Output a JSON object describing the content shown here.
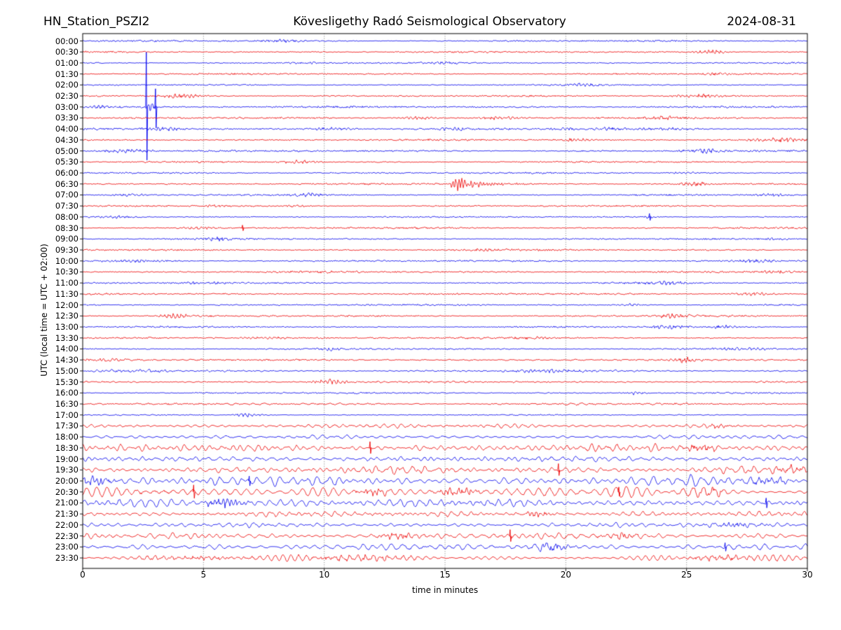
{
  "header": {
    "station": "HN_Station_PSZI2",
    "observatory": "Kövesligethy Radó Seismological Observatory",
    "date": "2024-08-31"
  },
  "axes": {
    "xlabel": "time in minutes",
    "ylabel": "UTC (local time = UTC + 02:00)",
    "x_tick_labels": [
      "0",
      "5",
      "10",
      "15",
      "20",
      "25",
      "30"
    ],
    "x_tick_minutes": [
      0,
      5,
      10,
      15,
      20,
      25,
      30
    ],
    "grid_minutes": [
      5,
      10,
      15,
      20,
      25
    ],
    "x_range_minutes": [
      0,
      30
    ]
  },
  "colors": {
    "trace_even": "#0000ee",
    "trace_odd": "#ee0000",
    "grid": "#6b6b6b",
    "frame": "#000000",
    "text": "#000000",
    "background": "#ffffff"
  },
  "chart_data": {
    "type": "line",
    "subtype": "helicorder-seismogram",
    "minutes_per_row": 30,
    "first_row_time": "00:00",
    "last_row_time": "23:30",
    "rows": [
      {
        "time": "00:00",
        "color": "blue",
        "amp": 0.9,
        "smooth": 0.25
      },
      {
        "time": "00:30",
        "color": "red",
        "amp": 0.9,
        "smooth": 0.25
      },
      {
        "time": "01:00",
        "color": "blue",
        "amp": 0.9,
        "smooth": 0.25
      },
      {
        "time": "01:30",
        "color": "red",
        "amp": 0.9,
        "smooth": 0.25
      },
      {
        "time": "02:00",
        "color": "blue",
        "amp": 0.8,
        "smooth": 0.25
      },
      {
        "time": "02:30",
        "color": "red",
        "amp": 0.9,
        "smooth": 0.25
      },
      {
        "time": "03:00",
        "color": "blue",
        "amp": 1.1,
        "smooth": 0.25
      },
      {
        "time": "03:30",
        "color": "red",
        "amp": 1.0,
        "smooth": 0.25
      },
      {
        "time": "04:00",
        "color": "blue",
        "amp": 1.1,
        "smooth": 0.3
      },
      {
        "time": "04:30",
        "color": "red",
        "amp": 1.0,
        "smooth": 0.25
      },
      {
        "time": "05:00",
        "color": "blue",
        "amp": 1.0,
        "smooth": 0.25
      },
      {
        "time": "05:30",
        "color": "red",
        "amp": 0.9,
        "smooth": 0.25
      },
      {
        "time": "06:00",
        "color": "blue",
        "amp": 0.9,
        "smooth": 0.25
      },
      {
        "time": "06:30",
        "color": "red",
        "amp": 1.0,
        "smooth": 0.25
      },
      {
        "time": "07:00",
        "color": "blue",
        "amp": 0.9,
        "smooth": 0.25
      },
      {
        "time": "07:30",
        "color": "red",
        "amp": 0.9,
        "smooth": 0.25
      },
      {
        "time": "08:00",
        "color": "blue",
        "amp": 0.8,
        "smooth": 0.25
      },
      {
        "time": "08:30",
        "color": "red",
        "amp": 1.0,
        "smooth": 0.3
      },
      {
        "time": "09:00",
        "color": "blue",
        "amp": 0.9,
        "smooth": 0.25
      },
      {
        "time": "09:30",
        "color": "red",
        "amp": 1.0,
        "smooth": 0.3
      },
      {
        "time": "10:00",
        "color": "blue",
        "amp": 1.0,
        "smooth": 0.3
      },
      {
        "time": "10:30",
        "color": "red",
        "amp": 1.1,
        "smooth": 0.3
      },
      {
        "time": "11:00",
        "color": "blue",
        "amp": 0.9,
        "smooth": 0.25
      },
      {
        "time": "11:30",
        "color": "red",
        "amp": 1.0,
        "smooth": 0.3
      },
      {
        "time": "12:00",
        "color": "blue",
        "amp": 0.9,
        "smooth": 0.25
      },
      {
        "time": "12:30",
        "color": "red",
        "amp": 1.0,
        "smooth": 0.3
      },
      {
        "time": "13:00",
        "color": "blue",
        "amp": 0.9,
        "smooth": 0.25
      },
      {
        "time": "13:30",
        "color": "red",
        "amp": 1.0,
        "smooth": 0.3
      },
      {
        "time": "14:00",
        "color": "blue",
        "amp": 0.9,
        "smooth": 0.3
      },
      {
        "time": "14:30",
        "color": "red",
        "amp": 1.1,
        "smooth": 0.4
      },
      {
        "time": "15:00",
        "color": "blue",
        "amp": 1.2,
        "smooth": 0.55
      },
      {
        "time": "15:30",
        "color": "red",
        "amp": 1.1,
        "smooth": 0.45
      },
      {
        "time": "16:00",
        "color": "blue",
        "amp": 0.9,
        "smooth": 0.3
      },
      {
        "time": "16:30",
        "color": "red",
        "amp": 1.2,
        "smooth": 0.45
      },
      {
        "time": "17:00",
        "color": "blue",
        "amp": 0.7,
        "smooth": 0.3
      },
      {
        "time": "17:30",
        "color": "red",
        "amp": 2.0,
        "smooth": 0.75
      },
      {
        "time": "18:00",
        "color": "blue",
        "amp": 1.8,
        "smooth": 0.75
      },
      {
        "time": "18:30",
        "color": "red",
        "amp": 3.2,
        "smooth": 0.8
      },
      {
        "time": "19:00",
        "color": "blue",
        "amp": 2.6,
        "smooth": 0.8
      },
      {
        "time": "19:30",
        "color": "red",
        "amp": 3.2,
        "smooth": 0.8
      },
      {
        "time": "20:00",
        "color": "blue",
        "amp": 4.2,
        "smooth": 0.85
      },
      {
        "time": "20:30",
        "color": "red",
        "amp": 4.6,
        "smooth": 0.85
      },
      {
        "time": "21:00",
        "color": "blue",
        "amp": 4.0,
        "smooth": 0.85
      },
      {
        "time": "21:30",
        "color": "red",
        "amp": 2.4,
        "smooth": 0.8
      },
      {
        "time": "22:00",
        "color": "blue",
        "amp": 2.0,
        "smooth": 0.8
      },
      {
        "time": "22:30",
        "color": "red",
        "amp": 2.8,
        "smooth": 0.8
      },
      {
        "time": "23:00",
        "color": "blue",
        "amp": 3.0,
        "smooth": 0.8
      },
      {
        "time": "23:30",
        "color": "red",
        "amp": 2.6,
        "smooth": 0.8
      }
    ],
    "events_format": "burst:[row,'burst',center_min,width_min,amp_px] vspike:[row,'vspike',minute,up_px,down_px] equake:[row,'equake',onset_min,amp_px,decay_min]",
    "events": [
      [
        0,
        "burst",
        8.3,
        0.5,
        1.2
      ],
      [
        1,
        "burst",
        26.1,
        0.5,
        2.5
      ],
      [
        2,
        "burst",
        9.2,
        0.4,
        1.2
      ],
      [
        2,
        "burst",
        15.1,
        0.4,
        1.4
      ],
      [
        3,
        "burst",
        26.3,
        0.3,
        2.0
      ],
      [
        4,
        "burst",
        20.8,
        0.5,
        1.6
      ],
      [
        5,
        "burst",
        4.1,
        0.6,
        2.6
      ],
      [
        5,
        "burst",
        25.6,
        0.8,
        2.2
      ],
      [
        6,
        "burst",
        0.8,
        0.5,
        1.8
      ],
      [
        6,
        "burst",
        2.75,
        0.18,
        5.0
      ],
      [
        6,
        "vspike",
        2.64,
        78,
        76
      ],
      [
        6,
        "vspike",
        3.02,
        26,
        30
      ],
      [
        7,
        "burst",
        13.9,
        0.5,
        2.2
      ],
      [
        7,
        "burst",
        17.2,
        0.5,
        2.2
      ],
      [
        7,
        "burst",
        24.0,
        0.7,
        1.4
      ],
      [
        8,
        "burst",
        3.4,
        0.5,
        1.8
      ],
      [
        8,
        "burst",
        10.3,
        0.7,
        1.8
      ],
      [
        8,
        "burst",
        15.3,
        0.5,
        1.8
      ],
      [
        8,
        "burst",
        20.0,
        0.4,
        1.5
      ],
      [
        8,
        "burst",
        21.8,
        0.4,
        1.5
      ],
      [
        8,
        "burst",
        24.2,
        0.8,
        1.5
      ],
      [
        9,
        "burst",
        20.3,
        0.5,
        2.2
      ],
      [
        9,
        "burst",
        28.8,
        0.8,
        2.4
      ],
      [
        10,
        "burst",
        1.9,
        0.8,
        2.4
      ],
      [
        10,
        "burst",
        25.7,
        0.6,
        2.6
      ],
      [
        11,
        "burst",
        9.0,
        0.5,
        2.0
      ],
      [
        12,
        "burst",
        24.8,
        0.5,
        1.2
      ],
      [
        13,
        "equake",
        15.1,
        8.5,
        0.85
      ],
      [
        13,
        "burst",
        25.4,
        0.5,
        2.0
      ],
      [
        14,
        "burst",
        2.0,
        0.4,
        1.8
      ],
      [
        14,
        "burst",
        9.3,
        0.4,
        2.2
      ],
      [
        14,
        "burst",
        28.5,
        0.5,
        1.5
      ],
      [
        15,
        "burst",
        5.4,
        0.3,
        1.3
      ],
      [
        15,
        "burst",
        8.9,
        0.3,
        1.3
      ],
      [
        16,
        "burst",
        1.5,
        0.5,
        1.3
      ],
      [
        16,
        "vspike",
        23.47,
        5,
        5
      ],
      [
        16,
        "burst",
        23.47,
        0.15,
        2.0
      ],
      [
        17,
        "burst",
        4.7,
        0.5,
        1.5
      ],
      [
        17,
        "vspike",
        6.62,
        4,
        4
      ],
      [
        18,
        "burst",
        5.7,
        0.5,
        2.4
      ],
      [
        18,
        "burst",
        28.8,
        0.4,
        1.4
      ],
      [
        19,
        "burst",
        16.5,
        1.0,
        1.2
      ],
      [
        20,
        "burst",
        2.3,
        1.1,
        1.4
      ],
      [
        20,
        "burst",
        27.7,
        0.8,
        1.8
      ],
      [
        21,
        "burst",
        28.7,
        0.5,
        1.5
      ],
      [
        22,
        "burst",
        4.9,
        0.7,
        1.4
      ],
      [
        22,
        "burst",
        24.3,
        0.7,
        2.2
      ],
      [
        23,
        "burst",
        27.7,
        0.6,
        1.8
      ],
      [
        24,
        "burst",
        22.7,
        0.4,
        1.4
      ],
      [
        25,
        "burst",
        3.9,
        0.45,
        2.8
      ],
      [
        25,
        "burst",
        24.5,
        0.55,
        2.8
      ],
      [
        26,
        "burst",
        24.2,
        0.5,
        2.2
      ],
      [
        26,
        "burst",
        26.5,
        0.4,
        2.2
      ],
      [
        27,
        "burst",
        7.5,
        1.2,
        1.1
      ],
      [
        27,
        "burst",
        18.6,
        0.5,
        1.2
      ],
      [
        28,
        "burst",
        10.2,
        0.25,
        2.0
      ],
      [
        28,
        "burst",
        27.0,
        1.2,
        1.2
      ],
      [
        29,
        "burst",
        1.0,
        0.8,
        1.4
      ],
      [
        29,
        "burst",
        25.0,
        0.5,
        3.0
      ],
      [
        30,
        "burst",
        2.2,
        1.0,
        1.4
      ],
      [
        30,
        "burst",
        19.2,
        1.0,
        2.0
      ],
      [
        31,
        "burst",
        10.2,
        0.5,
        3.0
      ],
      [
        32,
        "burst",
        22.9,
        0.3,
        2.0
      ],
      [
        34,
        "burst",
        6.9,
        0.4,
        2.5
      ],
      [
        35,
        "burst",
        26.3,
        0.4,
        2.5
      ],
      [
        37,
        "vspike",
        11.9,
        9,
        8
      ],
      [
        37,
        "burst",
        25.6,
        0.4,
        4.0
      ],
      [
        39,
        "vspike",
        19.7,
        9,
        8
      ],
      [
        39,
        "burst",
        29.4,
        0.4,
        4.0
      ],
      [
        40,
        "burst",
        0.5,
        0.5,
        5.0
      ],
      [
        40,
        "vspike",
        6.9,
        7,
        7
      ],
      [
        40,
        "burst",
        28.4,
        0.5,
        4.0
      ],
      [
        41,
        "vspike",
        4.6,
        10,
        9
      ],
      [
        41,
        "burst",
        12.0,
        0.4,
        5.0
      ],
      [
        41,
        "burst",
        15.6,
        0.6,
        5.0
      ],
      [
        41,
        "vspike",
        22.2,
        7,
        6
      ],
      [
        41,
        "burst",
        25.9,
        0.4,
        4.0
      ],
      [
        42,
        "burst",
        5.9,
        0.6,
        6.0
      ],
      [
        42,
        "vspike",
        28.3,
        7,
        7
      ],
      [
        43,
        "burst",
        18.8,
        0.4,
        4.0
      ],
      [
        44,
        "burst",
        27.1,
        0.8,
        2.5
      ],
      [
        45,
        "burst",
        13.0,
        0.5,
        3.5
      ],
      [
        45,
        "vspike",
        17.7,
        9,
        8
      ],
      [
        45,
        "burst",
        22.3,
        0.4,
        3.0
      ],
      [
        46,
        "burst",
        19.4,
        0.5,
        4.0
      ],
      [
        46,
        "vspike",
        26.6,
        6,
        6
      ],
      [
        47,
        "burst",
        4.5,
        1.8,
        1.5
      ],
      [
        47,
        "burst",
        11.5,
        1.5,
        2.0
      ],
      [
        47,
        "burst",
        26.5,
        1.0,
        2.0
      ]
    ]
  }
}
